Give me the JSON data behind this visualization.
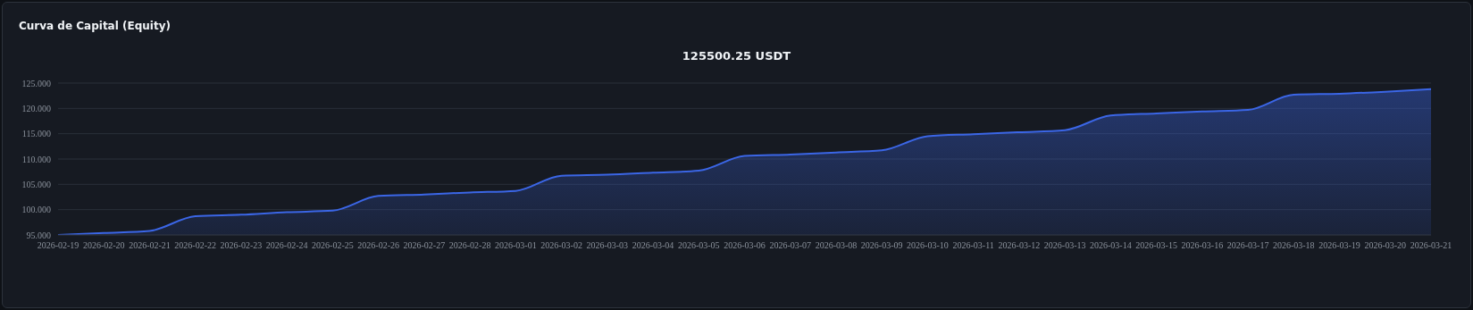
{
  "chart_data": {
    "type": "area",
    "title": "Curva de Capital (Equity)",
    "subtitle": "125500.25 USDT",
    "categories": [
      "2026-02-19",
      "2026-02-20",
      "2026-02-21",
      "2026-02-22",
      "2026-02-23",
      "2026-02-24",
      "2026-02-25",
      "2026-02-26",
      "2026-02-27",
      "2026-02-28",
      "2026-03-01",
      "2026-03-02",
      "2026-03-03",
      "2026-03-04",
      "2026-03-05",
      "2026-03-06",
      "2026-03-07",
      "2026-03-08",
      "2026-03-09",
      "2026-03-10",
      "2026-03-11",
      "2026-03-12",
      "2026-03-13",
      "2026-03-14",
      "2026-03-15",
      "2026-03-16",
      "2026-03-17",
      "2026-03-18",
      "2026-03-19",
      "2026-03-20",
      "2026-03-21"
    ],
    "series": [
      {
        "color": "#3b66e6",
        "values": [
          95.0,
          95.4,
          95.8,
          98.7,
          99.0,
          99.5,
          99.8,
          102.7,
          103.0,
          103.4,
          103.7,
          106.7,
          106.9,
          107.3,
          107.7,
          110.6,
          110.9,
          111.3,
          111.7,
          114.5,
          114.9,
          115.3,
          115.7,
          118.6,
          119.0,
          119.4,
          119.7,
          122.7,
          122.9,
          123.3,
          123.8
        ]
      }
    ],
    "ylim": [
      95,
      125
    ],
    "yticks": [
      {
        "value": 95,
        "label": "95.000"
      },
      {
        "value": 100,
        "label": "100.000"
      },
      {
        "value": 105,
        "label": "105.000"
      },
      {
        "value": 110,
        "label": "110.000"
      },
      {
        "value": 115,
        "label": "115.000"
      },
      {
        "value": 120,
        "label": "120.000"
      },
      {
        "value": 125,
        "label": "125.000"
      }
    ],
    "grid": "y"
  }
}
